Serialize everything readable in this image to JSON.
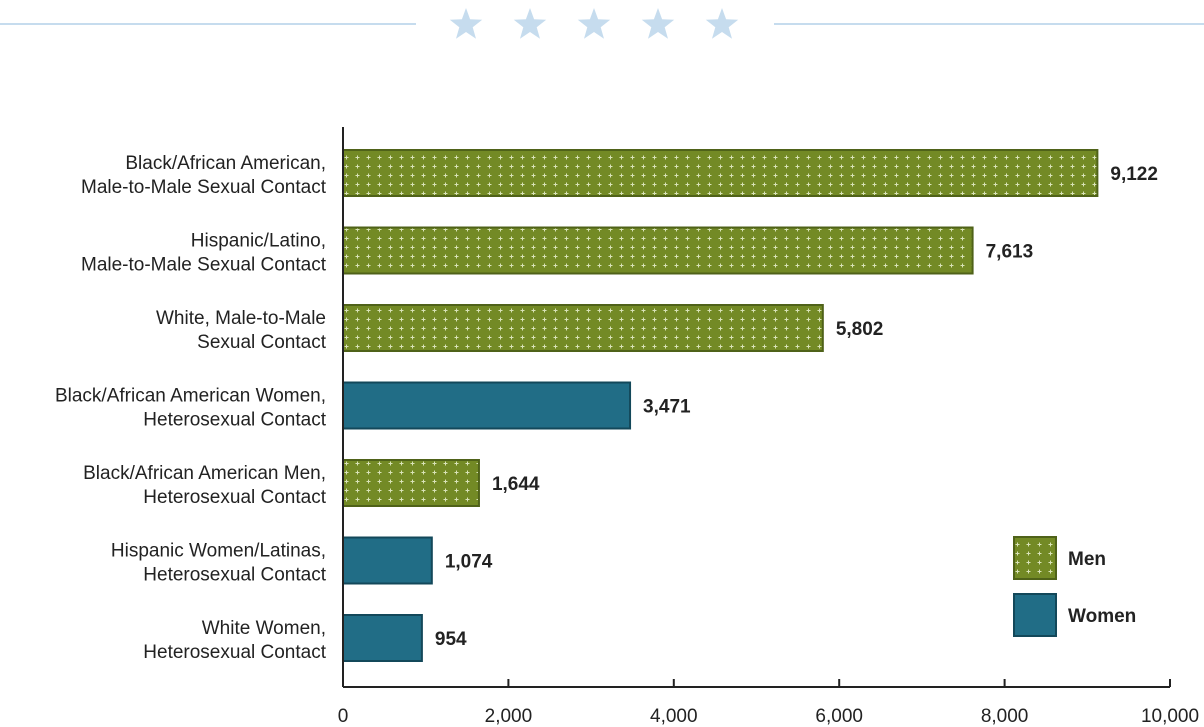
{
  "header": {
    "star_icon_count": 5,
    "star_color": "#c6dcee",
    "rule_color": "#c6dcee"
  },
  "colors": {
    "men": "#738a25",
    "men_border": "#4f6219",
    "women": "#216d86",
    "women_border": "#13485a"
  },
  "chart_data": {
    "type": "bar",
    "orientation": "horizontal",
    "categories": [
      [
        "Black/African American,",
        "Male-to-Male Sexual Contact"
      ],
      [
        "Hispanic/Latino,",
        "Male-to-Male Sexual Contact"
      ],
      [
        "White, Male-to-Male",
        "Sexual Contact"
      ],
      [
        "Black/African American Women,",
        "Heterosexual Contact"
      ],
      [
        "Black/African American Men,",
        "Heterosexual Contact"
      ],
      [
        "Hispanic Women/Latinas,",
        "Heterosexual Contact"
      ],
      [
        "White Women,",
        "Heterosexual Contact"
      ]
    ],
    "values": [
      9122,
      7613,
      5802,
      3471,
      1644,
      1074,
      954
    ],
    "value_labels": [
      "9,122",
      "7,613",
      "5,802",
      "3,471",
      "1,644",
      "1,074",
      "954"
    ],
    "groups": [
      "Men",
      "Men",
      "Men",
      "Women",
      "Men",
      "Women",
      "Women"
    ],
    "xlim": [
      0,
      10000
    ],
    "xticks": [
      0,
      2000,
      4000,
      6000,
      8000,
      10000
    ],
    "xtick_labels": [
      "0",
      "2,000",
      "4,000",
      "6,000",
      "8,000",
      "10,000"
    ],
    "legend": {
      "placement": "bottom-right",
      "entries": [
        {
          "name": "Men",
          "pattern": "plus-dots"
        },
        {
          "name": "Women",
          "pattern": "solid"
        }
      ]
    },
    "grid": false
  }
}
